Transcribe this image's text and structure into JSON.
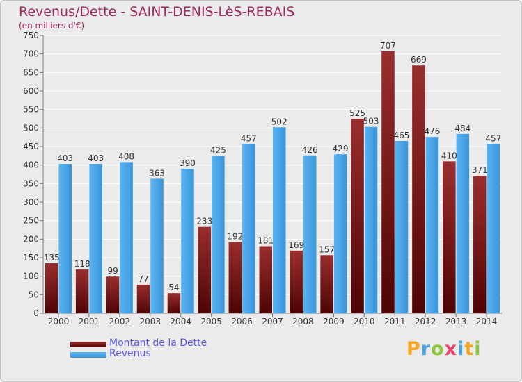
{
  "header": {
    "title": "Revenus/Dette - SAINT-DENIS-LèS-REBAIS",
    "subtitle": "(en milliers d'€)"
  },
  "logo": {
    "letters": [
      "P",
      "r",
      "o",
      "x",
      "i",
      "t",
      "i"
    ],
    "colors": [
      "#f5a623",
      "#4aa3df",
      "#8cc63f",
      "#e8436a",
      "#4aa3df",
      "#f5a623",
      "#8cc63f"
    ]
  },
  "chart_data": {
    "type": "bar",
    "categories": [
      "2000",
      "2001",
      "2002",
      "2003",
      "2004",
      "2005",
      "2006",
      "2007",
      "2008",
      "2009",
      "2010",
      "2011",
      "2012",
      "2013",
      "2014"
    ],
    "series": [
      {
        "name": "Montant de la Dette",
        "color": "#7a1a1a",
        "values": [
          135,
          118,
          99,
          77,
          54,
          233,
          192,
          181,
          169,
          157,
          525,
          707,
          669,
          410,
          371
        ]
      },
      {
        "name": "Revenus",
        "color": "#4aa3e6",
        "values": [
          403,
          403,
          408,
          363,
          390,
          425,
          457,
          502,
          426,
          429,
          503,
          465,
          476,
          484,
          457
        ]
      }
    ],
    "title": "Revenus/Dette - SAINT-DENIS-LèS-REBAIS",
    "ylabel": "(en milliers d'€)",
    "ylim": [
      0,
      750
    ],
    "yticks": [
      0,
      50,
      100,
      150,
      200,
      250,
      300,
      350,
      400,
      450,
      500,
      550,
      600,
      650,
      700,
      750
    ],
    "grid": true,
    "legend": "bottom-left"
  }
}
